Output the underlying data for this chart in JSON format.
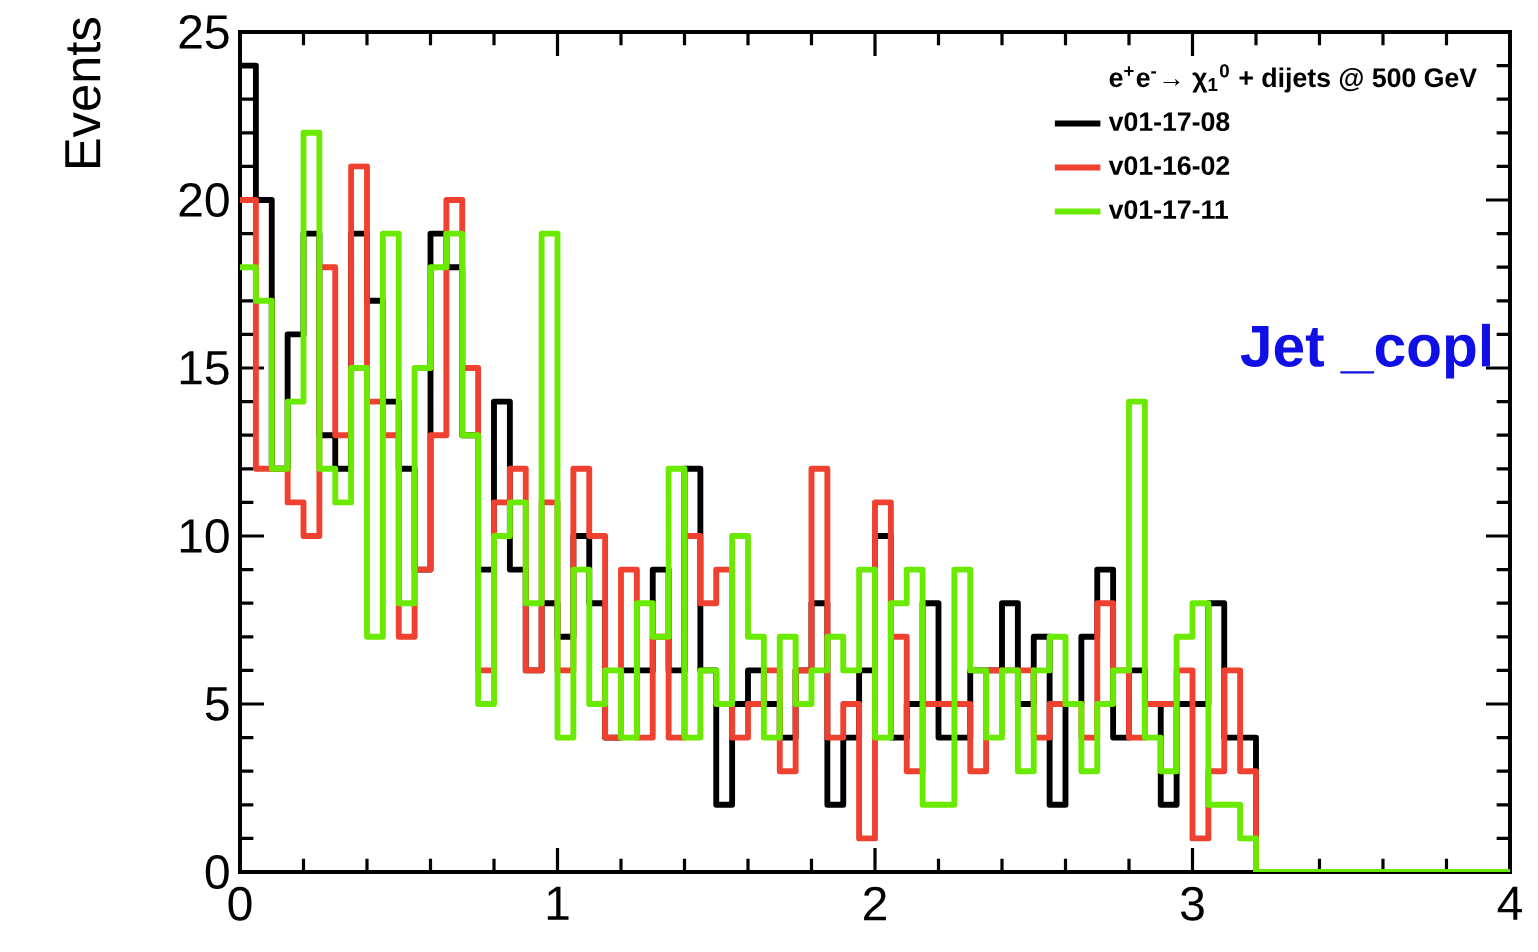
{
  "chart_data": {
    "type": "histogram",
    "ylabel": "Events",
    "legend_title": "e$^{+}$e$^{-}$→ χ$_{1}$$^{0}$ + dijets @ 500 GeV",
    "annotations": [
      "Jet _copl"
    ],
    "bins": [
      0,
      0.05,
      0.1,
      0.15,
      0.2,
      0.25,
      0.3,
      0.35,
      0.4,
      0.45,
      0.5,
      0.55,
      0.6,
      0.65,
      0.7,
      0.75,
      0.8,
      0.85,
      0.9,
      0.95,
      1,
      1.05,
      1.1,
      1.15,
      1.2,
      1.25,
      1.3,
      1.35,
      1.4,
      1.45,
      1.5,
      1.55,
      1.6,
      1.65,
      1.7,
      1.75,
      1.8,
      1.85,
      1.9,
      1.95,
      2,
      2.05,
      2.1,
      2.15,
      2.2,
      2.25,
      2.3,
      2.35,
      2.4,
      2.45,
      2.5,
      2.55,
      2.6,
      2.65,
      2.7,
      2.75,
      2.8,
      2.85,
      2.9,
      2.95,
      3,
      3.05,
      3.1,
      3.15,
      3.2,
      3.25,
      3.3,
      3.35,
      3.4,
      3.45,
      3.5,
      3.55,
      3.6,
      3.65,
      3.7,
      3.75,
      3.8,
      3.85,
      3.9,
      3.95,
      4
    ],
    "series": [
      {
        "name": "v01-17-08",
        "color": "#000000",
        "values": [
          24,
          20,
          12,
          16,
          19,
          13,
          12,
          19,
          17,
          14,
          12,
          9,
          19,
          18,
          13,
          9,
          14,
          9,
          6,
          8,
          7,
          10,
          8,
          4,
          6,
          6,
          9,
          6,
          12,
          6,
          2,
          5,
          6,
          5,
          4,
          6,
          8,
          2,
          4,
          6,
          10,
          4,
          5,
          8,
          4,
          4,
          6,
          6,
          8,
          5,
          7,
          2,
          5,
          7,
          9,
          4,
          6,
          5,
          2,
          5,
          5,
          8,
          4,
          4,
          0,
          0,
          0,
          0,
          0,
          0,
          0,
          0,
          0,
          0,
          0,
          0,
          0,
          0,
          0,
          0
        ]
      },
      {
        "name": "v01-16-02",
        "color": "#f0402f",
        "values": [
          20,
          12,
          12,
          11,
          10,
          18,
          13,
          21,
          14,
          13,
          7,
          9,
          13,
          20,
          15,
          6,
          11,
          12,
          6,
          11,
          6,
          12,
          10,
          4,
          9,
          4,
          7,
          4,
          10,
          8,
          9,
          4,
          5,
          6,
          3,
          6,
          12,
          4,
          5,
          1,
          11,
          7,
          3,
          5,
          5,
          5,
          3,
          6,
          6,
          6,
          4,
          5,
          5,
          4,
          8,
          6,
          4,
          5,
          5,
          6,
          1,
          3,
          6,
          3,
          0,
          0,
          0,
          0,
          0,
          0,
          0,
          0,
          0,
          0,
          0,
          0,
          0,
          0,
          0,
          0
        ]
      },
      {
        "name": "v01-17-11",
        "color": "#6aea00",
        "values": [
          18,
          17,
          12,
          14,
          22,
          12,
          11,
          15,
          7,
          19,
          8,
          15,
          18,
          19,
          13,
          5,
          10,
          11,
          8,
          19,
          4,
          9,
          5,
          6,
          4,
          8,
          7,
          12,
          4,
          6,
          5,
          10,
          7,
          4,
          7,
          5,
          6,
          7,
          6,
          9,
          4,
          8,
          9,
          2,
          2,
          9,
          6,
          4,
          6,
          3,
          6,
          7,
          5,
          3,
          5,
          6,
          14,
          4,
          3,
          7,
          8,
          2,
          2,
          1,
          0,
          0,
          0,
          0,
          0,
          0,
          0,
          0,
          0,
          0,
          0,
          0,
          0,
          0,
          0,
          0
        ]
      }
    ],
    "xlim": [
      0,
      4
    ],
    "ylim": [
      0,
      25
    ],
    "xticks": [
      0,
      1,
      2,
      3,
      4
    ],
    "yticks": [
      0,
      5,
      10,
      15,
      20,
      25
    ],
    "legend": "top right",
    "grid": false
  }
}
